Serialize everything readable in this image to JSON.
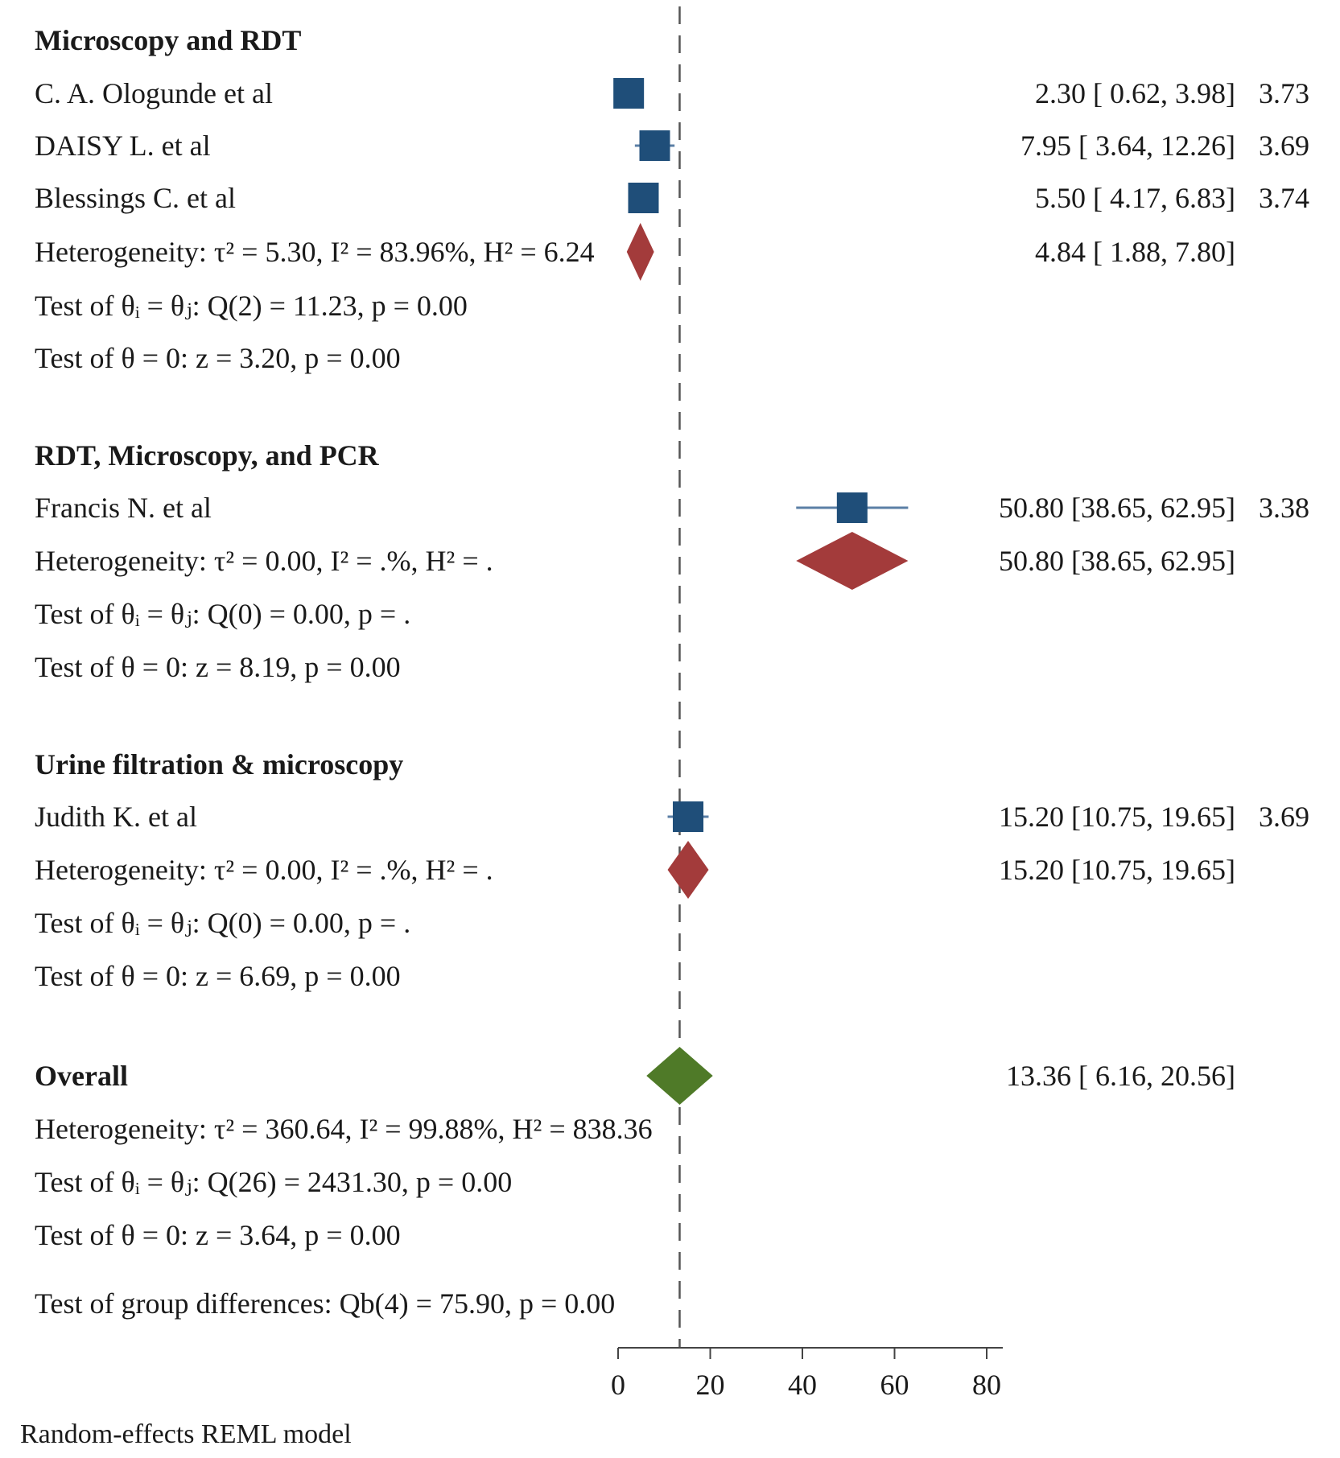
{
  "chart_data": {
    "type": "forest",
    "xlim": [
      0,
      80
    ],
    "xticks": [
      0,
      20,
      40,
      60,
      80
    ],
    "reference_value": 13.36,
    "colors": {
      "study": "#1f4e79",
      "subgroup": "#a33b3b",
      "overall": "#4f7a28",
      "ci_line": "#5b7fa6"
    },
    "rows": [
      {
        "kind": "header",
        "label": "Microscopy and RDT"
      },
      {
        "kind": "study",
        "label": "C. A. Ologunde et al",
        "est": 2.3,
        "lo": 0.62,
        "hi": 3.98,
        "ci_text": "2.30 [  0.62,   3.98]",
        "weight": "3.73"
      },
      {
        "kind": "study",
        "label": "DAISY   L. et al",
        "est": 7.95,
        "lo": 3.64,
        "hi": 12.26,
        "ci_text": "7.95 [  3.64, 12.26]",
        "weight": "3.69"
      },
      {
        "kind": "study",
        "label": "Blessings C. et al",
        "est": 5.5,
        "lo": 4.17,
        "hi": 6.83,
        "ci_text": "5.50 [  4.17,   6.83]",
        "weight": "3.74"
      },
      {
        "kind": "subgroup",
        "label": "Heterogeneity: τ² = 5.30, I² = 83.96%, H² = 6.24",
        "est": 4.84,
        "lo": 1.88,
        "hi": 7.8,
        "ci_text": "4.84 [  1.88,   7.80]"
      },
      {
        "kind": "text",
        "label": "Test of θᵢ = θⱼ: Q(2) = 11.23, p = 0.00"
      },
      {
        "kind": "text",
        "label": "Test of θ = 0: z = 3.20, p = 0.00"
      },
      {
        "kind": "gap"
      },
      {
        "kind": "header",
        "label": "RDT, Microscopy, and PCR"
      },
      {
        "kind": "study",
        "label": "Francis N. et al",
        "est": 50.8,
        "lo": 38.65,
        "hi": 62.95,
        "ci_text": "50.80 [38.65, 62.95]",
        "weight": "3.38"
      },
      {
        "kind": "subgroup",
        "label": "Heterogeneity: τ² = 0.00, I² = .%, H² = .",
        "est": 50.8,
        "lo": 38.65,
        "hi": 62.95,
        "ci_text": "50.80 [38.65, 62.95]"
      },
      {
        "kind": "text",
        "label": "Test of θᵢ = θⱼ: Q(0) = 0.00, p = ."
      },
      {
        "kind": "text",
        "label": "Test of θ = 0: z = 8.19, p = 0.00"
      },
      {
        "kind": "gap"
      },
      {
        "kind": "header",
        "label": "Urine filtration &  microscopy"
      },
      {
        "kind": "study",
        "label": "Judith K. et al",
        "est": 15.2,
        "lo": 10.75,
        "hi": 19.65,
        "ci_text": "15.20 [10.75, 19.65]",
        "weight": "3.69"
      },
      {
        "kind": "subgroup",
        "label": "Heterogeneity: τ² = 0.00, I² = .%, H² = .",
        "est": 15.2,
        "lo": 10.75,
        "hi": 19.65,
        "ci_text": "15.20 [10.75, 19.65]"
      },
      {
        "kind": "text",
        "label": "Test of θᵢ = θⱼ: Q(0) = 0.00, p = ."
      },
      {
        "kind": "text",
        "label": "Test of θ = 0: z = 6.69, p = 0.00"
      },
      {
        "kind": "gap"
      },
      {
        "kind": "overall",
        "label": "Overall",
        "est": 13.36,
        "lo": 6.16,
        "hi": 20.56,
        "ci_text": "13.36 [  6.16, 20.56]"
      },
      {
        "kind": "text",
        "label": "Heterogeneity: τ² = 360.64, I² = 99.88%, H² = 838.36"
      },
      {
        "kind": "text",
        "label": "Test of θᵢ = θⱼ: Q(26) = 2431.30, p = 0.00"
      },
      {
        "kind": "text",
        "label": "Test of θ = 0: z = 3.64, p = 0.00"
      },
      {
        "kind": "text",
        "label": "Test of group differences: Qb(4) = 75.90, p = 0.00"
      }
    ],
    "footnote": "Random-effects REML model"
  }
}
